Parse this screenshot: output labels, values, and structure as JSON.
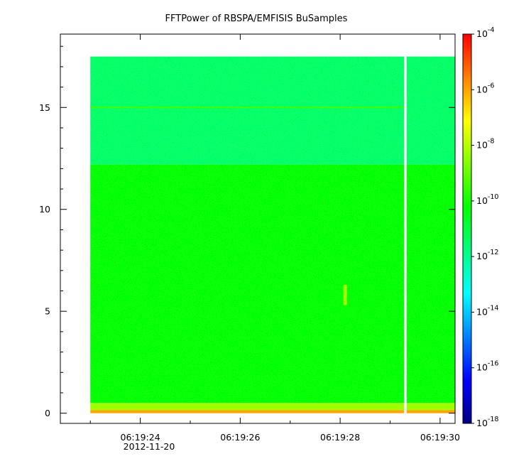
{
  "chart_data": {
    "type": "heatmap",
    "title": "FFTPower of RBSPA/EMFISIS  BuSamples",
    "xlabel": "",
    "ylabel": "",
    "x_range": [
      "06:19:22.4",
      "06:19:30.3"
    ],
    "data_x_range": [
      "06:19:23.0",
      "06:19:30.3"
    ],
    "data_gap": [
      "06:19:29.28",
      "06:19:29.33"
    ],
    "y_range": [
      -0.5,
      18.6
    ],
    "data_y_range": [
      0,
      17.5
    ],
    "x_ticks": [
      {
        "value": "06:19:24",
        "label": "06:19:24"
      },
      {
        "value": "06:19:26",
        "label": "06:19:26"
      },
      {
        "value": "06:19:28",
        "label": "06:19:28"
      },
      {
        "value": "06:19:30",
        "label": "06:19:30"
      }
    ],
    "x_date_label": "2012-11-20",
    "y_ticks": [
      {
        "value": 0,
        "label": "0"
      },
      {
        "value": 5,
        "label": "5"
      },
      {
        "value": 10,
        "label": "10"
      },
      {
        "value": 15,
        "label": "15"
      }
    ],
    "colorbar": {
      "scale": "log",
      "range": [
        1e-18,
        0.0001
      ],
      "ticks": [
        {
          "value": 0.0001,
          "base": "10",
          "exp": "-4"
        },
        {
          "value": 1e-06,
          "base": "10",
          "exp": "-6"
        },
        {
          "value": 1e-08,
          "base": "10",
          "exp": "-8"
        },
        {
          "value": 1e-10,
          "base": "10",
          "exp": "-10"
        },
        {
          "value": 1e-12,
          "base": "10",
          "exp": "-12"
        },
        {
          "value": 1e-14,
          "base": "10",
          "exp": "-14"
        },
        {
          "value": 1e-16,
          "base": "10",
          "exp": "-16"
        },
        {
          "value": 1e-18,
          "base": "10",
          "exp": "-18"
        }
      ],
      "colors": [
        "#000080",
        "#0000ff",
        "#0080ff",
        "#00ffff",
        "#00ff80",
        "#00ff00",
        "#80ff00",
        "#ffff00",
        "#ff8000",
        "#ff0000"
      ]
    },
    "bands": [
      {
        "y_from": 12.2,
        "y_to": 17.5,
        "power": 3e-12
      },
      {
        "y_from": 0.5,
        "y_to": 12.2,
        "power": 5e-11
      },
      {
        "y_from": 0.15,
        "y_to": 0.5,
        "power": 5e-09
      },
      {
        "y_from": 0.0,
        "y_to": 0.15,
        "power": 1e-06
      }
    ],
    "features": [
      {
        "y": 15.0,
        "power": 3e-10
      },
      {
        "x": "06:19:28.1",
        "y_from": 5.3,
        "y_to": 6.3,
        "power": 5e-09
      }
    ]
  }
}
